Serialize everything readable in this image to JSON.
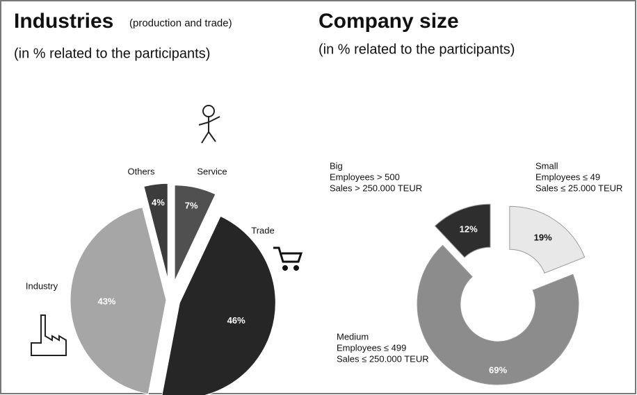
{
  "chart_data": [
    {
      "type": "pie",
      "title": "Industries",
      "title_note": "(production and trade)",
      "subtitle": "(in % related to the participants)",
      "categories": [
        "Service",
        "Trade",
        "Industry",
        "Others"
      ],
      "values": [
        7,
        46,
        43,
        4
      ],
      "value_labels": [
        "7%",
        "46%",
        "43%",
        "4%"
      ],
      "colors": [
        "#505050",
        "#262626",
        "#a6a6a6",
        "#3c3c3c"
      ]
    },
    {
      "type": "donut",
      "title": "Company size",
      "subtitle": "(in % related to the participants)",
      "categories": [
        "Small",
        "Medium",
        "Big"
      ],
      "category_details": [
        [
          "Employees ≤ 49",
          "Sales ≤ 25.000 TEUR"
        ],
        [
          "Employees ≤ 499",
          "Sales ≤ 250.000 TEUR"
        ],
        [
          "Employees > 500",
          "Sales > 250.000 TEUR"
        ]
      ],
      "values": [
        19,
        69,
        12
      ],
      "value_labels": [
        "19%",
        "69%",
        "12%"
      ],
      "colors": [
        "#e8e8e8",
        "#8c8c8c",
        "#2e2e2e"
      ]
    }
  ]
}
